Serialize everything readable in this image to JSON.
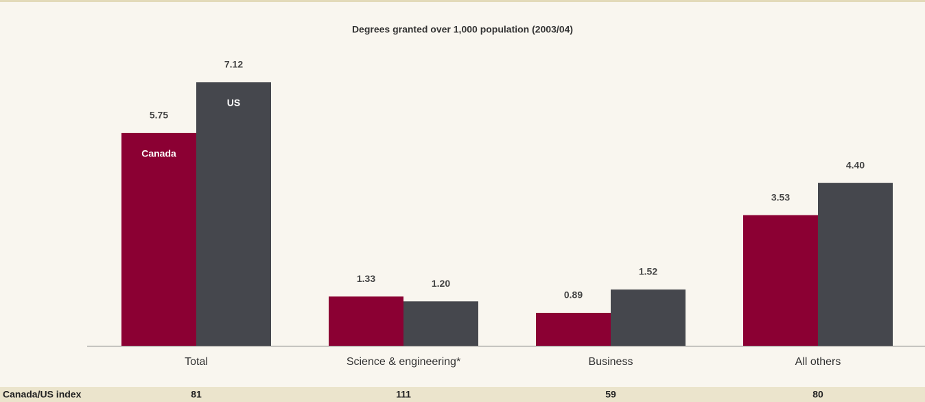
{
  "chart_data": {
    "type": "bar",
    "title": "Degrees granted over 1,000 population (2003/04)",
    "categories": [
      "Total",
      "Science & engineering*",
      "Business",
      "All others"
    ],
    "series": [
      {
        "name": "Canada",
        "color": "#8b0033",
        "values": [
          5.75,
          1.33,
          0.89,
          3.53
        ],
        "value_labels": [
          "5.75",
          "1.33",
          "0.89",
          "3.53"
        ]
      },
      {
        "name": "US",
        "color": "#45474d",
        "values": [
          7.12,
          1.2,
          1.52,
          4.4
        ],
        "value_labels": [
          "7.12",
          "1.20",
          "1.52",
          "4.40"
        ]
      }
    ],
    "index": {
      "label": "Canada/US index",
      "values": [
        81,
        111,
        59,
        80
      ]
    }
  }
}
